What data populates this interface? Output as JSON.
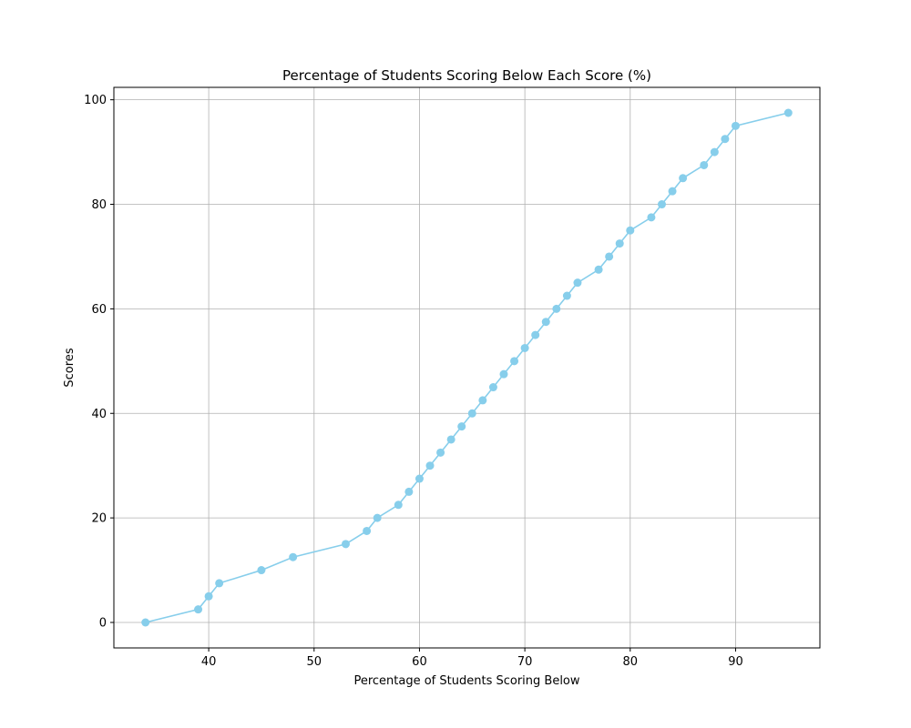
{
  "chart_data": {
    "type": "line",
    "title": "Percentage of Students Scoring Below Each Score (%)",
    "xlabel": "Percentage of Students Scoring Below",
    "ylabel": "Scores",
    "xlim": [
      31,
      98
    ],
    "ylim": [
      -4.875,
      102.375
    ],
    "xticks": [
      40,
      50,
      60,
      70,
      80,
      90
    ],
    "yticks": [
      0,
      20,
      40,
      60,
      80,
      100
    ],
    "grid": true,
    "color": "#87ceeb",
    "series": [
      {
        "x": [
          34,
          39,
          40,
          41,
          45,
          48,
          53,
          55,
          56,
          58,
          59,
          60,
          61,
          62,
          63,
          64,
          65,
          66,
          67,
          68,
          69,
          70,
          71,
          72,
          73,
          74,
          75,
          77,
          78,
          79,
          80,
          82,
          83,
          84,
          85,
          87,
          88,
          89,
          90,
          95
        ],
        "y": [
          0,
          2.5,
          5,
          7.5,
          10,
          12.5,
          15,
          17.5,
          20,
          22.5,
          25,
          27.5,
          30,
          32.5,
          35,
          37.5,
          40,
          42.5,
          45,
          47.5,
          50,
          52.5,
          55,
          57.5,
          60,
          62.5,
          65,
          67.5,
          70,
          72.5,
          75,
          77.5,
          80,
          82.5,
          85,
          87.5,
          90,
          92.5,
          95,
          97.5
        ]
      }
    ]
  }
}
